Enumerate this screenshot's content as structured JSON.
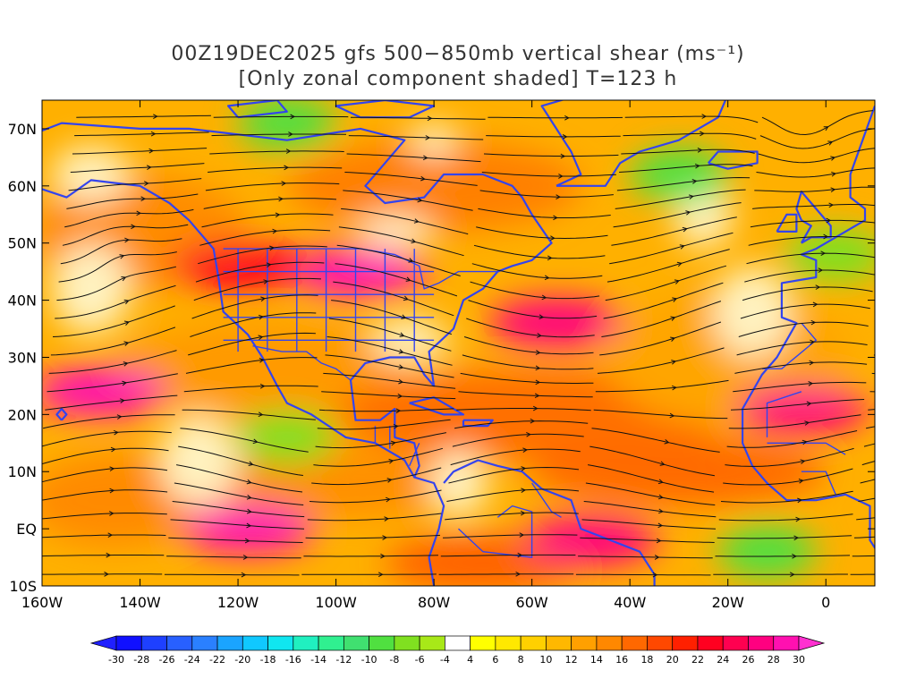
{
  "title": {
    "line1": "00Z19DEC2025 gfs 500−850mb vertical shear (ms⁻¹)",
    "line2": "[Only zonal component shaded] T=123 h"
  },
  "map": {
    "lon_range": [
      -160,
      10
    ],
    "lat_range": [
      -10,
      75
    ],
    "x_ticks": [
      {
        "lon": -160,
        "label": "160W"
      },
      {
        "lon": -140,
        "label": "140W"
      },
      {
        "lon": -120,
        "label": "120W"
      },
      {
        "lon": -100,
        "label": "100W"
      },
      {
        "lon": -80,
        "label": "80W"
      },
      {
        "lon": -60,
        "label": "60W"
      },
      {
        "lon": -40,
        "label": "40W"
      },
      {
        "lon": -20,
        "label": "20W"
      },
      {
        "lon": 0,
        "label": "0"
      }
    ],
    "y_ticks": [
      {
        "lat": 70,
        "label": "70N"
      },
      {
        "lat": 60,
        "label": "60N"
      },
      {
        "lat": 50,
        "label": "50N"
      },
      {
        "lat": 40,
        "label": "40N"
      },
      {
        "lat": 30,
        "label": "30N"
      },
      {
        "lat": 20,
        "label": "20N"
      },
      {
        "lat": 10,
        "label": "10N"
      },
      {
        "lat": 0,
        "label": "EQ"
      },
      {
        "lat": -10,
        "label": "10S"
      }
    ],
    "colors": {
      "coast": "#3344ee",
      "stream": "#111111",
      "frame": "#000000"
    },
    "shading_zones": [
      {
        "name": "pacific-north-jet",
        "lon": -120,
        "lat": 46,
        "value": 22
      },
      {
        "name": "us-jet-core",
        "lon": -95,
        "lat": 45,
        "value": 28
      },
      {
        "name": "atlantic-jet",
        "lon": -55,
        "lat": 36,
        "value": 26
      },
      {
        "name": "subtropical-pacific-jet",
        "lon": -148,
        "lat": 24,
        "value": 28
      },
      {
        "name": "east-pacific-equatorial",
        "lon": -118,
        "lat": 0,
        "value": 28
      },
      {
        "name": "african-subtropical-jet",
        "lon": -5,
        "lat": 21,
        "value": 26
      },
      {
        "name": "south-atlantic-jet",
        "lon": -48,
        "lat": -2,
        "value": 26
      },
      {
        "name": "north-atlantic-easterly",
        "lon": -30,
        "lat": 62,
        "value": -10
      },
      {
        "name": "arctic-easterly",
        "lon": -110,
        "lat": 71,
        "value": -10
      },
      {
        "name": "gulf-of-guinea-easterly",
        "lon": -12,
        "lat": -4,
        "value": -10
      },
      {
        "name": "europe-easterly",
        "lon": 2,
        "lat": 48,
        "value": -8
      },
      {
        "name": "mexico-easterly",
        "lon": -110,
        "lat": 16,
        "value": -8
      }
    ]
  },
  "colorbar": {
    "segments": [
      {
        "value": -30,
        "color": "#1010ff"
      },
      {
        "value": -28,
        "color": "#1e40ff"
      },
      {
        "value": -26,
        "color": "#2860ff"
      },
      {
        "value": -24,
        "color": "#2a80ff"
      },
      {
        "value": -22,
        "color": "#1aa4ff"
      },
      {
        "value": -20,
        "color": "#10c8ff"
      },
      {
        "value": -18,
        "color": "#10e6f0"
      },
      {
        "value": -16,
        "color": "#20f0c0"
      },
      {
        "value": -14,
        "color": "#30f090"
      },
      {
        "value": -12,
        "color": "#40e070"
      },
      {
        "value": -10,
        "color": "#50e040"
      },
      {
        "value": -8,
        "color": "#80e020"
      },
      {
        "value": -6,
        "color": "#a8e818"
      },
      {
        "value": -4,
        "color": "#ffffff"
      },
      {
        "value": 4,
        "color": "#ffff00"
      },
      {
        "value": 6,
        "color": "#ffe800"
      },
      {
        "value": 8,
        "color": "#ffd000"
      },
      {
        "value": 10,
        "color": "#ffb800"
      },
      {
        "value": 12,
        "color": "#ffa000"
      },
      {
        "value": 14,
        "color": "#ff8800"
      },
      {
        "value": 16,
        "color": "#ff6800"
      },
      {
        "value": 18,
        "color": "#ff4800"
      },
      {
        "value": 20,
        "color": "#ff2000"
      },
      {
        "value": 22,
        "color": "#ff0020"
      },
      {
        "value": 24,
        "color": "#ff0050"
      },
      {
        "value": 26,
        "color": "#ff0080"
      },
      {
        "value": 28,
        "color": "#ff10b0"
      }
    ],
    "end_colors": {
      "low": "#2020ff",
      "high": "#ff30d0"
    },
    "labels": [
      "-30",
      "-28",
      "-26",
      "-24",
      "-22",
      "-20",
      "-18",
      "-16",
      "-14",
      "-12",
      "-10",
      "-8",
      "-6",
      "-4",
      "4",
      "6",
      "8",
      "10",
      "12",
      "14",
      "16",
      "18",
      "20",
      "22",
      "24",
      "26",
      "28",
      "30"
    ]
  }
}
